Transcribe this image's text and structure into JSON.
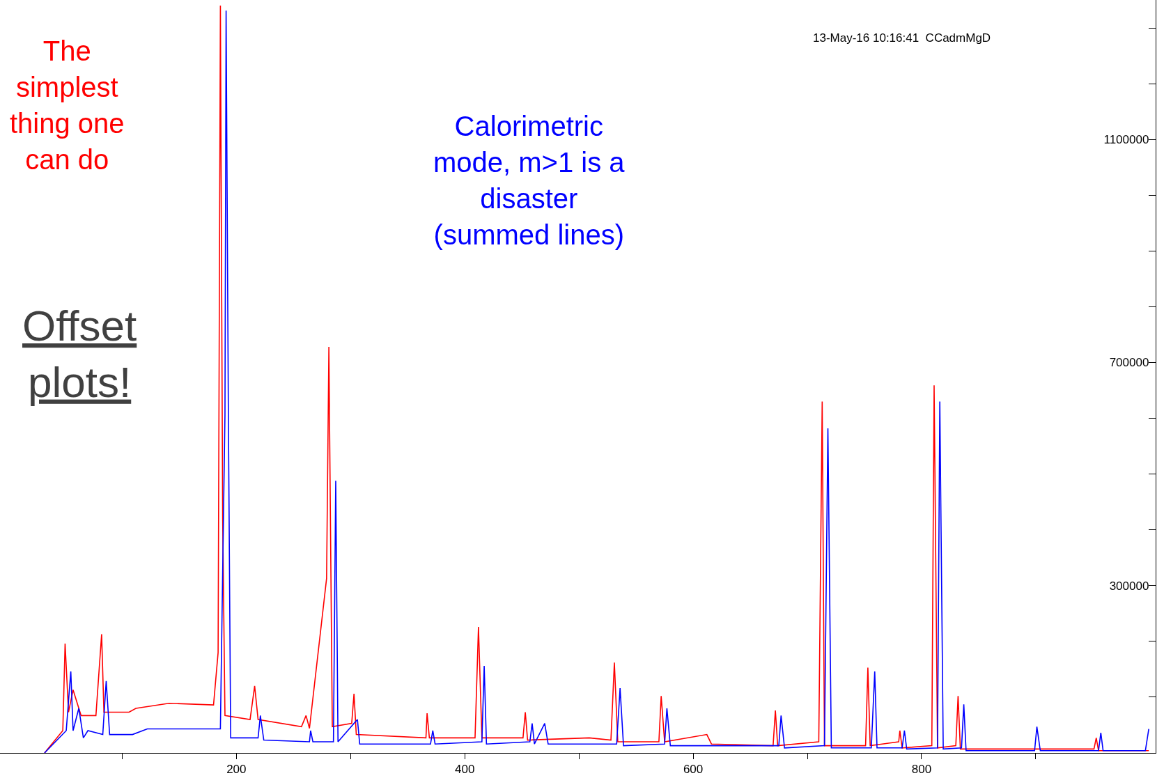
{
  "chart_data": {
    "type": "line",
    "xlim": [
      -7,
      1005
    ],
    "ylim": [
      0,
      1350000
    ],
    "xticks": [
      {
        "value": 100,
        "label": null
      },
      200,
      {
        "value": 300,
        "label": null
      },
      400,
      {
        "value": 500,
        "label": null
      },
      600,
      {
        "value": 700,
        "label": null
      },
      800,
      {
        "value": 900,
        "label": null
      }
    ],
    "yticks": [
      {
        "value": 100000,
        "label": null
      },
      {
        "value": 200000,
        "label": null
      },
      300000,
      {
        "value": 400000,
        "label": null
      },
      {
        "value": 500000,
        "label": null
      },
      {
        "value": 600000,
        "label": null
      },
      700000,
      {
        "value": 800000,
        "label": null
      },
      {
        "value": 900000,
        "label": null
      },
      {
        "value": 1000000,
        "label": null
      },
      1100000,
      {
        "value": 1200000,
        "label": null
      },
      {
        "value": 1300000,
        "label": null
      }
    ],
    "annotations": [
      "The\nsimplest\nthing one\ncan do",
      "Calorimetric\nmode, m>1 is a\ndisaster\n(summed lines)",
      "Offset\nplots!",
      "13-May-16 10:16:41  CCadmMgD"
    ],
    "series": [
      {
        "color": "#ff0000",
        "x": [
          32,
          48,
          50,
          53,
          57,
          64,
          77,
          82,
          84,
          106,
          112,
          141,
          180,
          184,
          186,
          188,
          190,
          212,
          216,
          219,
          257,
          261,
          264,
          279,
          281,
          284,
          301,
          303,
          305,
          366,
          367,
          369,
          409,
          412,
          415,
          451,
          453,
          455,
          509,
          528,
          531,
          534,
          570,
          572,
          575,
          612,
          616,
          670,
          672,
          674,
          710,
          713,
          715,
          751,
          753,
          755,
          780,
          781,
          783,
          809,
          811,
          814,
          830,
          832,
          834,
          951,
          953,
          955,
          999
        ],
        "values": [
          0,
          40000,
          196000,
          73000,
          113000,
          67000,
          67000,
          213000,
          73000,
          73000,
          80000,
          89000,
          86000,
          180000,
          1340000,
          419000,
          67000,
          60000,
          120000,
          60000,
          47000,
          67000,
          44000,
          313000,
          728000,
          47000,
          53000,
          106000,
          33000,
          27000,
          71000,
          27000,
          27000,
          226000,
          27000,
          27000,
          73000,
          23000,
          27000,
          23000,
          162000,
          20000,
          20000,
          102000,
          20000,
          33000,
          16000,
          13000,
          76000,
          13000,
          20000,
          630000,
          13000,
          13000,
          153000,
          13000,
          20000,
          40000,
          9000,
          13000,
          659000,
          9000,
          13000,
          102000,
          7000,
          7000,
          27000,
          4000,
          4000
        ]
      },
      {
        "color": "#0000ff",
        "x": [
          32,
          51,
          55,
          57,
          62,
          66,
          70,
          83,
          86,
          89,
          109,
          122,
          186,
          190,
          191,
          193,
          195,
          219,
          221,
          224,
          264,
          265,
          267,
          285,
          287,
          289,
          306,
          308,
          370,
          372,
          374,
          415,
          417,
          419,
          457,
          459,
          461,
          470,
          473,
          533,
          536,
          539,
          575,
          577,
          580,
          675,
          677,
          680,
          715,
          718,
          721,
          756,
          759,
          761,
          783,
          785,
          787,
          814,
          816,
          819,
          835,
          837,
          839,
          899,
          901,
          904,
          955,
          957,
          959,
          996,
          999
        ],
        "values": [
          0,
          40000,
          146000,
          40000,
          80000,
          27000,
          40000,
          33000,
          129000,
          33000,
          33000,
          43000,
          43000,
          606000,
          1331000,
          606000,
          27000,
          27000,
          67000,
          23000,
          20000,
          40000,
          20000,
          20000,
          488000,
          20000,
          60000,
          16000,
          16000,
          40000,
          16000,
          20000,
          156000,
          16000,
          20000,
          53000,
          16000,
          53000,
          16000,
          16000,
          116000,
          13000,
          16000,
          80000,
          13000,
          13000,
          67000,
          9000,
          13000,
          582000,
          9000,
          9000,
          146000,
          9000,
          9000,
          40000,
          7000,
          9000,
          630000,
          7000,
          9000,
          87000,
          4000,
          4000,
          47000,
          4000,
          4000,
          36000,
          4000,
          4000,
          43000
        ]
      }
    ]
  }
}
